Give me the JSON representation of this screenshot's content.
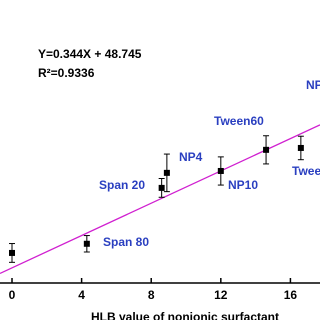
{
  "chart_data": {
    "type": "scatter",
    "equation": "Y=0.344X + 48.745",
    "r_squared": "R²=0.9336",
    "x_label": "HLB value of nonionic surfactant",
    "x": [
      0,
      4.3,
      8.6,
      8.9,
      12,
      14.6,
      16.6
    ],
    "values": [
      49.38,
      49.77,
      52.15,
      52.79,
      52.87,
      53.77,
      53.85
    ],
    "errors": [
      0.4,
      0.35,
      0.4,
      0.8,
      0.6,
      0.6,
      0.5
    ],
    "annotations": [
      "Span 80",
      "Span 20",
      "NP4",
      "NP10",
      "Tween60",
      "Twee",
      "NP"
    ],
    "fit": {
      "slope": 0.344,
      "intercept": 48.745,
      "color": "#d020d0"
    },
    "color": "#000000",
    "xlim": [
      -0.69,
      17.7
    ],
    "ylim": [
      48.1,
      60.15
    ],
    "xticks": [
      0,
      4,
      8,
      12,
      16
    ]
  }
}
